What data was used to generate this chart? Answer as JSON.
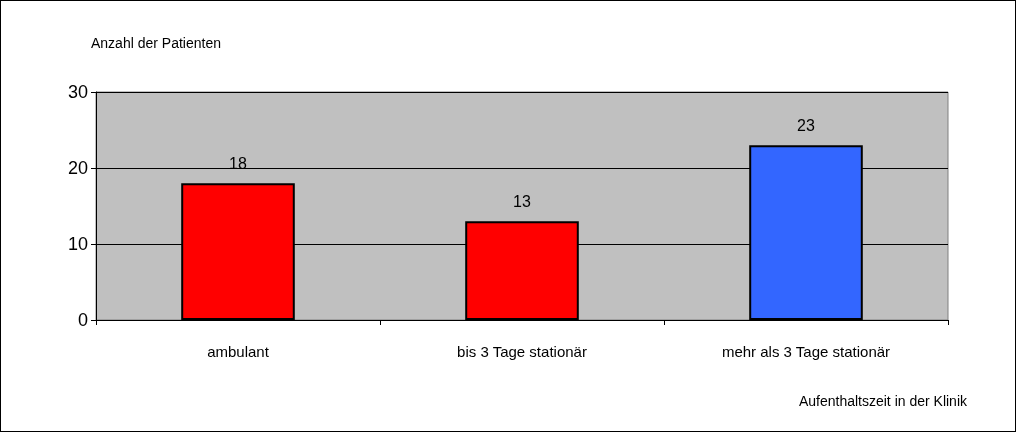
{
  "chart_data": {
    "type": "bar",
    "ylabel": "Anzahl der Patienten",
    "xlabel": "Aufenthaltszeit in der Klinik",
    "categories": [
      "ambulant",
      "bis 3 Tage stationär",
      "mehr als 3 Tage stationär"
    ],
    "values": [
      18,
      13,
      23
    ],
    "colors": [
      "#ff0000",
      "#ff0000",
      "#3366ff"
    ],
    "ylim": [
      0,
      30
    ],
    "yticks": [
      0,
      10,
      20,
      30
    ],
    "grid": "y",
    "data_labels": true
  }
}
